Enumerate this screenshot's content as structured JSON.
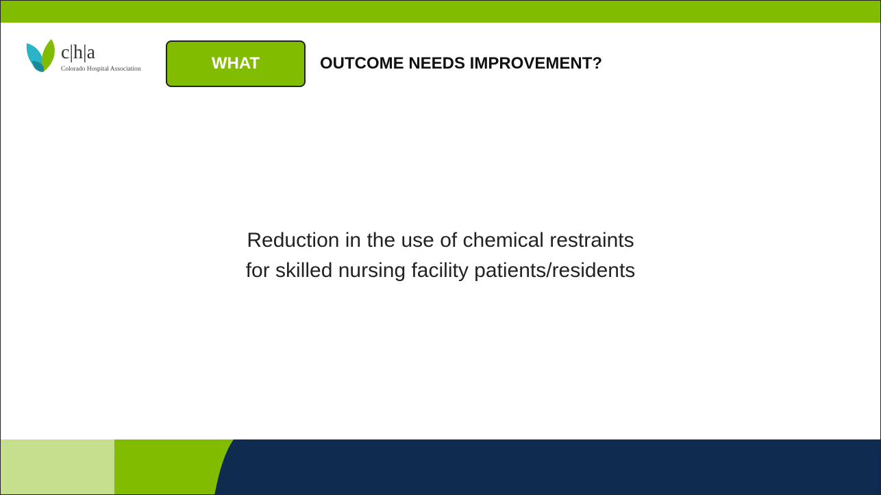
{
  "logo": {
    "mark": "c|h|a",
    "name": "Colorado Hospital Association"
  },
  "header": {
    "badge": "WHAT",
    "title": "OUTCOME NEEDS IMPROVEMENT?"
  },
  "body": {
    "lines": [
      "Reduction in the use of chemical restraints",
      "for skilled nursing facility patients/residents"
    ]
  }
}
